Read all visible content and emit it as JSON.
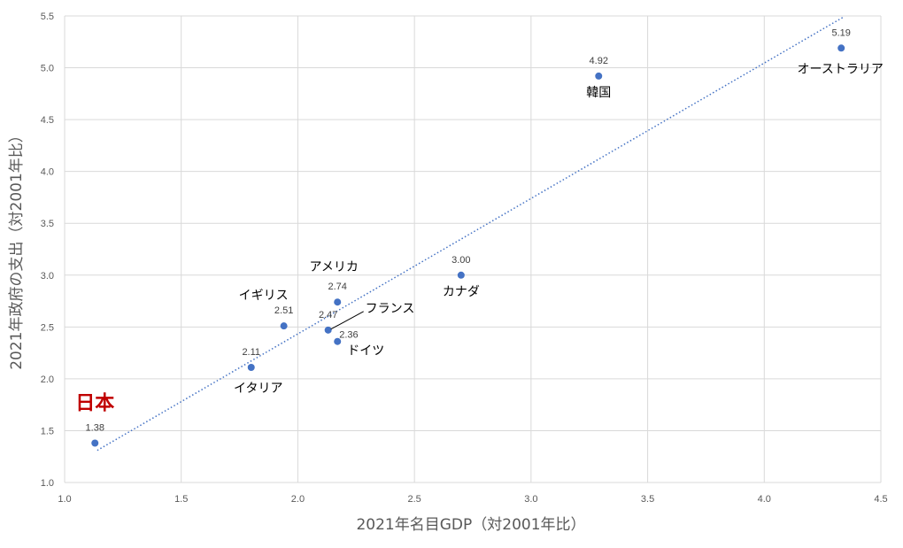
{
  "chart_data": {
    "type": "scatter",
    "xlabel": "2021年名目GDP（対2001年比）",
    "ylabel": "2021年政府の支出（対2001年比）",
    "xlim": [
      1.0,
      4.5
    ],
    "ylim": [
      1.0,
      5.5
    ],
    "x_ticks": [
      "1.0",
      "1.5",
      "2.0",
      "2.5",
      "3.0",
      "3.5",
      "4.0",
      "4.5"
    ],
    "y_ticks": [
      "1.0",
      "1.5",
      "2.0",
      "2.5",
      "3.0",
      "3.5",
      "4.0",
      "4.5",
      "5.0",
      "5.5"
    ],
    "grid": true,
    "trendline": {
      "style": "dotted",
      "x_start": 1.14,
      "x_end": 4.34
    },
    "points": [
      {
        "name": "日本",
        "x": 1.13,
        "y": 1.38,
        "label": "1.38",
        "highlight": true
      },
      {
        "name": "イタリア",
        "x": 1.8,
        "y": 2.11,
        "label": "2.11"
      },
      {
        "name": "イギリス",
        "x": 1.94,
        "y": 2.51,
        "label": "2.51"
      },
      {
        "name": "フランス",
        "x": 2.13,
        "y": 2.47,
        "label": "2.47"
      },
      {
        "name": "アメリカ",
        "x": 2.17,
        "y": 2.74,
        "label": "2.74"
      },
      {
        "name": "ドイツ",
        "x": 2.17,
        "y": 2.36,
        "label": "2.36"
      },
      {
        "name": "カナダ",
        "x": 2.7,
        "y": 3.0,
        "label": "3.00"
      },
      {
        "name": "韓国",
        "x": 3.29,
        "y": 4.92,
        "label": "4.92"
      },
      {
        "name": "オーストラリア",
        "x": 4.33,
        "y": 5.19,
        "label": "5.19"
      }
    ]
  }
}
